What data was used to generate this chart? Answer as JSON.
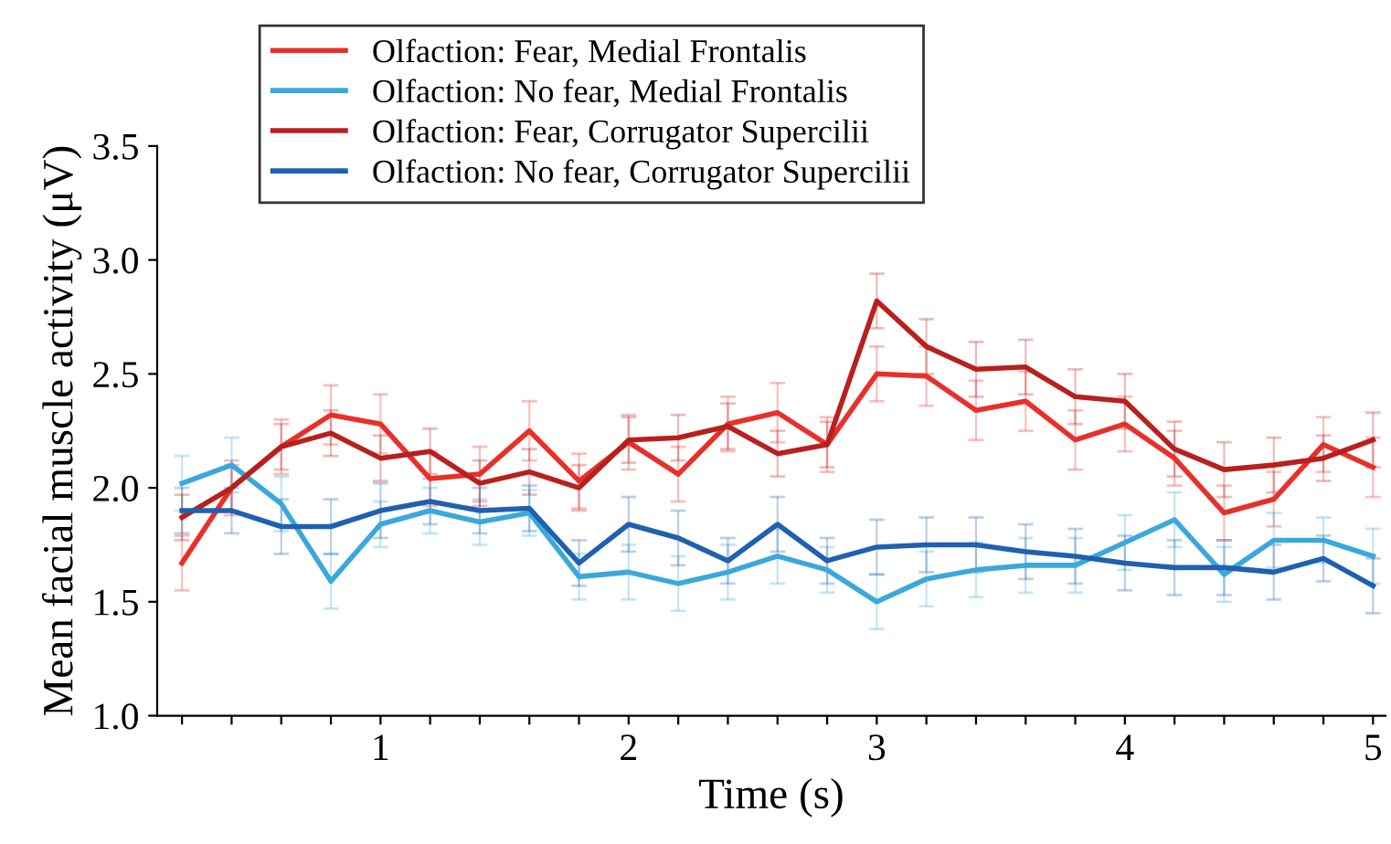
{
  "chart_data": {
    "type": "line",
    "xlabel": "Time (s)",
    "ylabel": "Mean facial muscle activity (μV)",
    "x": [
      0.2,
      0.4,
      0.6,
      0.8,
      1.0,
      1.2,
      1.4,
      1.6,
      1.8,
      2.0,
      2.2,
      2.4,
      2.6,
      2.8,
      3.0,
      3.2,
      3.4,
      3.6,
      3.8,
      4.0,
      4.2,
      4.4,
      4.6,
      4.8,
      5.0
    ],
    "series": [
      {
        "name": "Olfaction: Fear, Medial Frontalis",
        "color": "#e8302a",
        "values": [
          1.67,
          2.0,
          2.18,
          2.32,
          2.28,
          2.04,
          2.06,
          2.25,
          2.03,
          2.2,
          2.06,
          2.28,
          2.33,
          2.19,
          2.5,
          2.49,
          2.34,
          2.38,
          2.21,
          2.28,
          2.13,
          1.89,
          1.95,
          2.19,
          2.09
        ],
        "errors": [
          0.12,
          0.12,
          0.12,
          0.13,
          0.13,
          0.12,
          0.12,
          0.13,
          0.12,
          0.12,
          0.12,
          0.12,
          0.13,
          0.12,
          0.12,
          0.13,
          0.13,
          0.13,
          0.13,
          0.12,
          0.12,
          0.12,
          0.12,
          0.12,
          0.13
        ]
      },
      {
        "name": "Olfaction: No fear, Medial Frontalis",
        "color": "#3aa8dc",
        "values": [
          2.02,
          2.1,
          1.93,
          1.59,
          1.84,
          1.9,
          1.85,
          1.89,
          1.61,
          1.63,
          1.58,
          1.63,
          1.7,
          1.64,
          1.5,
          1.6,
          1.64,
          1.66,
          1.66,
          1.76,
          1.86,
          1.62,
          1.77,
          1.77,
          1.7
        ],
        "errors": [
          0.12,
          0.12,
          0.12,
          0.12,
          0.1,
          0.1,
          0.1,
          0.1,
          0.1,
          0.12,
          0.12,
          0.12,
          0.12,
          0.1,
          0.12,
          0.12,
          0.12,
          0.12,
          0.12,
          0.12,
          0.12,
          0.12,
          0.12,
          0.1,
          0.12
        ]
      },
      {
        "name": "Olfaction: Fear, Corrugator Supercilii",
        "color": "#b8201e",
        "values": [
          1.87,
          2.0,
          2.18,
          2.24,
          2.13,
          2.16,
          2.02,
          2.07,
          2.0,
          2.21,
          2.22,
          2.27,
          2.15,
          2.19,
          2.82,
          2.62,
          2.52,
          2.53,
          2.4,
          2.38,
          2.17,
          2.08,
          2.1,
          2.13,
          2.21
        ],
        "errors": [
          0.1,
          0.1,
          0.1,
          0.1,
          0.1,
          0.1,
          0.1,
          0.1,
          0.1,
          0.1,
          0.1,
          0.1,
          0.1,
          0.1,
          0.12,
          0.12,
          0.12,
          0.12,
          0.12,
          0.12,
          0.12,
          0.12,
          0.12,
          0.1,
          0.12
        ]
      },
      {
        "name": "Olfaction: No fear, Corrugator Supercilii",
        "color": "#2060b0",
        "values": [
          1.9,
          1.9,
          1.83,
          1.83,
          1.9,
          1.94,
          1.9,
          1.91,
          1.67,
          1.84,
          1.78,
          1.68,
          1.84,
          1.68,
          1.74,
          1.75,
          1.75,
          1.72,
          1.7,
          1.67,
          1.65,
          1.65,
          1.63,
          1.69,
          1.57
        ],
        "errors": [
          0.1,
          0.1,
          0.12,
          0.12,
          0.12,
          0.1,
          0.1,
          0.1,
          0.1,
          0.12,
          0.12,
          0.1,
          0.12,
          0.1,
          0.12,
          0.12,
          0.12,
          0.12,
          0.12,
          0.12,
          0.12,
          0.12,
          0.12,
          0.1,
          0.12
        ]
      }
    ],
    "xlim": [
      0.1,
      5.05
    ],
    "ylim": [
      1.0,
      3.5
    ],
    "xticks": [
      {
        "value": 0.2,
        "label": null
      },
      {
        "value": 0.4,
        "label": null
      },
      {
        "value": 0.6,
        "label": null
      },
      {
        "value": 0.8,
        "label": null
      },
      1,
      {
        "value": 1.2,
        "label": null
      },
      {
        "value": 1.4,
        "label": null
      },
      {
        "value": 1.6,
        "label": null
      },
      {
        "value": 1.8,
        "label": null
      },
      2,
      {
        "value": 2.2,
        "label": null
      },
      {
        "value": 2.4,
        "label": null
      },
      {
        "value": 2.6,
        "label": null
      },
      {
        "value": 2.8,
        "label": null
      },
      3,
      {
        "value": 3.2,
        "label": null
      },
      {
        "value": 3.4,
        "label": null
      },
      {
        "value": 3.6,
        "label": null
      },
      {
        "value": 3.8,
        "label": null
      },
      4,
      {
        "value": 4.2,
        "label": null
      },
      {
        "value": 4.4,
        "label": null
      },
      {
        "value": 4.6,
        "label": null
      },
      {
        "value": 4.8,
        "label": null
      },
      5
    ],
    "yticks": [
      {
        "value": 1.0,
        "label": "1.0"
      },
      {
        "value": 1.5,
        "label": "1.5"
      },
      {
        "value": 2.0,
        "label": "2.0"
      },
      {
        "value": 2.5,
        "label": "2.5"
      },
      {
        "value": 3.0,
        "label": "3.0"
      },
      {
        "value": 3.5,
        "label": "3.5"
      }
    ],
    "grid": false,
    "legend": "top left",
    "marker": "none",
    "line_style": "solid"
  }
}
